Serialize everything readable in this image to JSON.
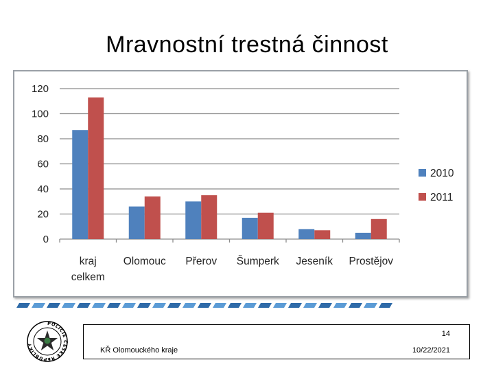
{
  "slide": {
    "title": "Mravnostní trestná činnost",
    "page_number": "14",
    "organization": "KŘ Olomouckého kraje",
    "date": "10/22/2021"
  },
  "logo": {
    "ring_text": "POLICIE ČESKÉ REPUBLIKY",
    "icon": "police-star-badge-icon"
  },
  "colors": {
    "series_2010": "#4f81bd",
    "series_2011": "#c0504d",
    "gridline": "#8c8c8c"
  },
  "chart_data": {
    "type": "bar",
    "categories": [
      [
        "kraj",
        "celkem"
      ],
      [
        "Olomouc"
      ],
      [
        "Přerov"
      ],
      [
        "Šumperk"
      ],
      [
        "Jeseník"
      ],
      [
        "Prostějov"
      ]
    ],
    "series": [
      {
        "name": "2010",
        "values": [
          87,
          26,
          30,
          17,
          8,
          5
        ]
      },
      {
        "name": "2011",
        "values": [
          113,
          34,
          35,
          21,
          7,
          16
        ]
      }
    ],
    "title": "",
    "xlabel": "",
    "ylabel": "",
    "ylim": [
      0,
      120
    ],
    "yticks": [
      0,
      20,
      40,
      60,
      80,
      100,
      120
    ],
    "grid": true,
    "legend": "right"
  }
}
